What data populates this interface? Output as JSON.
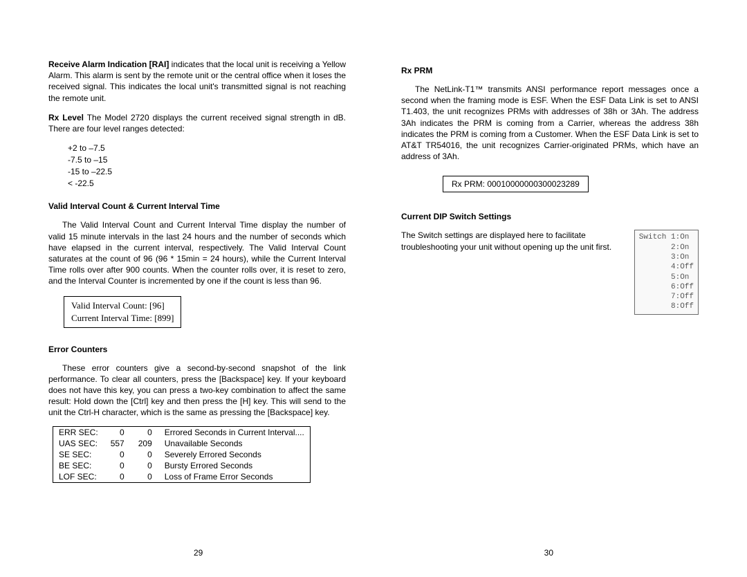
{
  "left": {
    "rai": {
      "heading": "Receive Alarm Indication [RAI]",
      "body": "  indicates that the local unit is receiving a Yellow Alarm. This alarm is sent by the remote unit or the central office when it loses the received signal. This indicates the local unit's transmitted signal is not reaching the remote unit."
    },
    "rxlevel": {
      "heading": "Rx Level",
      "body": "  The Model 2720 displays the current received signal strength in dB. There are four level ranges detected:"
    },
    "ranges": [
      "+2 to –7.5",
      "-7.5 to –15",
      "-15 to –22.5",
      "< -22.5"
    ],
    "valid_interval": {
      "heading": "Valid Interval Count & Current Interval Time",
      "body": "The Valid Interval Count and Current Interval Time display the number of valid 15 minute intervals in the last 24 hours and the number of seconds which have elapsed in the current interval, respectively. The Valid Interval Count saturates at the count of 96 (96 * 15min = 24 hours), while the Current Interval Time rolls over after 900 counts. When the counter rolls over, it is reset to zero, and the Interval Counter is incremented by one if the count is less than 96."
    },
    "valid_box": {
      "line1": "Valid Interval Count:   [96]",
      "line2": "Current Interval Time: [899]"
    },
    "error_counters": {
      "heading": "Error Counters",
      "body": "These error counters give a second-by-second snapshot of the link performance. To clear all counters, press the [Backspace] key. If your keyboard does not have this key, you can press a two-key combination to affect the same result: Hold down the [Ctrl] key and then press the [H] key. This will send to the unit the Ctrl-H character, which is the same as pressing the [Backspace] key."
    },
    "err_table": [
      {
        "label": "ERR SEC:",
        "v1": "0",
        "v2": "0",
        "desc": "Errored Seconds in Current Interval...."
      },
      {
        "label": "UAS SEC:",
        "v1": "557",
        "v2": "209",
        "desc": "Unavailable Seconds"
      },
      {
        "label": "SE SEC:",
        "v1": "0",
        "v2": "0",
        "desc": "Severely Errored Seconds"
      },
      {
        "label": "BE SEC:",
        "v1": "0",
        "v2": "0",
        "desc": "Bursty Errored Seconds"
      },
      {
        "label": "LOF SEC:",
        "v1": "0",
        "v2": "0",
        "desc": "Loss of Frame Error Seconds"
      }
    ],
    "pagenum": "29"
  },
  "right": {
    "rxprm": {
      "heading": "Rx PRM",
      "body": "The NetLink-T1™ transmits ANSI performance report messages once a second when the framing mode is ESF. When the ESF Data Link is set to ANSI T1.403, the unit recognizes PRMs with addresses of 38h or 3Ah. The address 3Ah indicates the PRM is coming from a Carrier, whereas the address 38h indicates the PRM is coming from a Customer. When the ESF Data Link is set to AT&T TR54016, the unit recognizes Carrier-originated PRMs, which have an address of 3Ah."
    },
    "rxprm_box": "Rx PRM: 00010000000300023289",
    "dip": {
      "heading": "Current DIP Switch Settings",
      "body": "The Switch settings are displayed here to facilitate troubleshooting your unit without opening up the unit first."
    },
    "dip_box": "Switch 1:On\n       2:On\n       3:On\n       4:Off\n       5:On\n       6:Off\n       7:Off\n       8:Off",
    "pagenum": "30"
  }
}
